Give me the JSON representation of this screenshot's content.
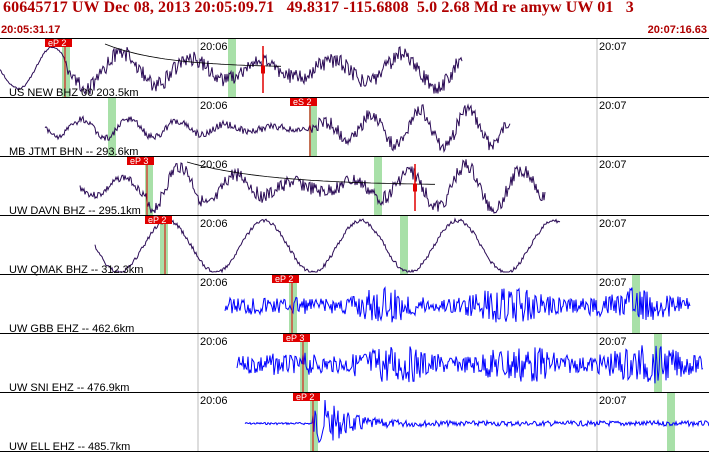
{
  "header": {
    "title": "60645717 UW Dec 08, 2013 20:05:09.71   49.8317 -115.6808  5.0 2.68 Md re amyw UW 01   3",
    "time_start": "20:05:31.17",
    "time_end": "20:07:16.63"
  },
  "ticks": {
    "t1": "20:06",
    "t2": "20:07"
  },
  "colors": {
    "title": "#b00000",
    "pick_box": "#e00000",
    "dark_trace": "#2a0a55",
    "blue_trace": "#0000ff",
    "window_bar": "#a8e0a8",
    "divider": "#000000",
    "tick_line": "#bbbbbb",
    "pick_line": "#e00000"
  },
  "traces": [
    {
      "label": "US NEW BHZ 00 203.5km",
      "pick": "eP 2",
      "color": "dark"
    },
    {
      "label": "MB JTMT BHN -- 293.6km",
      "pick": "eS 2",
      "color": "dark"
    },
    {
      "label": "UW DAVN BHZ -- 295.1km",
      "pick": "eP 3",
      "color": "dark"
    },
    {
      "label": "UW QMAK BHZ -- 312.3km",
      "pick": "eP 2",
      "color": "dark"
    },
    {
      "label": "UW GBB EHZ -- 462.6km",
      "pick": "eP 2",
      "color": "blue"
    },
    {
      "label": "UW SNI EHZ -- 476.9km",
      "pick": "eP 3",
      "color": "blue"
    },
    {
      "label": "UW ELL EHZ -- 485.7km",
      "pick": "eP 2",
      "color": "blue"
    }
  ]
}
